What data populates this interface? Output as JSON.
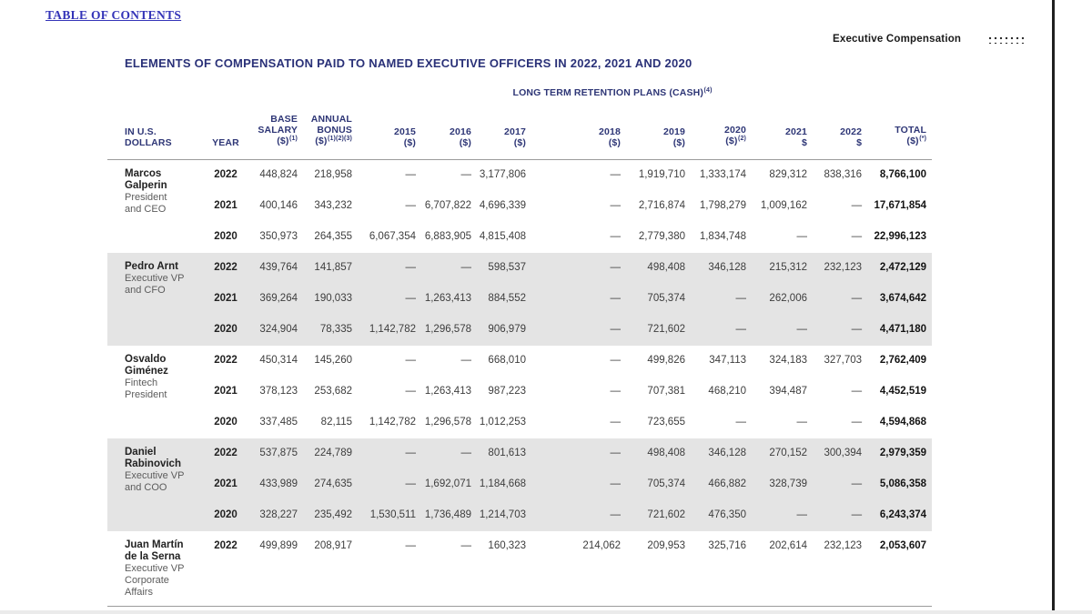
{
  "page": {
    "toc_link": "TABLE OF CONTENTS",
    "section_label": "Executive Compensation",
    "title": "ELEMENTS OF COMPENSATION PAID TO NAMED EXECUTIVE OFFICERS IN 2022, 2021 AND 2020"
  },
  "colors": {
    "accent_navy": "#2e3676",
    "link_blue": "#3434b8",
    "shaded_row": "#e4e4e4"
  },
  "icons": {
    "top_right": "dots-grid-icon"
  },
  "table": {
    "span_header": {
      "t": "LONG TERM RETENTION PLANS (CASH)",
      "s": "(4)"
    },
    "columns": [
      {
        "lines": [
          {
            "t": "IN U.S."
          },
          {
            "t": "DOLLARS"
          }
        ]
      },
      {
        "lines": [
          {
            "t": "YEAR"
          }
        ]
      },
      {
        "lines": [
          {
            "t": "BASE"
          },
          {
            "t": "SALARY"
          },
          {
            "t": "($)",
            "s": "(1)"
          }
        ]
      },
      {
        "lines": [
          {
            "t": "ANNUAL"
          },
          {
            "t": "BONUS"
          },
          {
            "t": "($)",
            "s": "(1)(2)(3)"
          }
        ]
      },
      {
        "lines": [
          {
            "t": "2015"
          },
          {
            "t": "($)"
          }
        ]
      },
      {
        "lines": [
          {
            "t": "2016"
          },
          {
            "t": "($)"
          }
        ]
      },
      {
        "lines": [
          {
            "t": "2017"
          },
          {
            "t": "($)"
          }
        ]
      },
      {
        "lines": [
          {
            "t": "2018"
          },
          {
            "t": "($)"
          }
        ]
      },
      {
        "lines": [
          {
            "t": "2019"
          },
          {
            "t": "($)"
          }
        ]
      },
      {
        "lines": [
          {
            "t": "2020"
          },
          {
            "t": "($)",
            "s": "(2)"
          }
        ]
      },
      {
        "lines": [
          {
            "t": "2021"
          },
          {
            "t": "$"
          }
        ]
      },
      {
        "lines": [
          {
            "t": "2022"
          },
          {
            "t": "$"
          }
        ]
      },
      {
        "lines": [
          {
            "t": "TOTAL"
          },
          {
            "t": "($)",
            "s": "(*)"
          }
        ]
      }
    ],
    "groups": [
      {
        "name": [
          "Marcos",
          "Galperin"
        ],
        "role": [
          "President",
          "and CEO"
        ],
        "shaded": false,
        "rows": [
          {
            "year": "2022",
            "cells": [
              "448,824",
              "218,958",
              "—",
              "—",
              "3,177,806",
              "—",
              "1,919,710",
              "1,333,174",
              "829,312",
              "838,316",
              "8,766,100"
            ]
          },
          {
            "year": "2021",
            "cells": [
              "400,146",
              "343,232",
              "—",
              "6,707,822",
              "4,696,339",
              "—",
              "2,716,874",
              "1,798,279",
              "1,009,162",
              "—",
              "17,671,854"
            ]
          },
          {
            "year": "2020",
            "cells": [
              "350,973",
              "264,355",
              "6,067,354",
              "6,883,905",
              "4,815,408",
              "—",
              "2,779,380",
              "1,834,748",
              "—",
              "—",
              "22,996,123"
            ]
          }
        ]
      },
      {
        "name": [
          "Pedro Arnt"
        ],
        "role": [
          "Executive VP",
          "and CFO"
        ],
        "shaded": true,
        "rows": [
          {
            "year": "2022",
            "cells": [
              "439,764",
              "141,857",
              "—",
              "—",
              "598,537",
              "—",
              "498,408",
              "346,128",
              "215,312",
              "232,123",
              "2,472,129"
            ]
          },
          {
            "year": "2021",
            "cells": [
              "369,264",
              "190,033",
              "—",
              "1,263,413",
              "884,552",
              "—",
              "705,374",
              "—",
              "262,006",
              "—",
              "3,674,642"
            ]
          },
          {
            "year": "2020",
            "cells": [
              "324,904",
              "78,335",
              "1,142,782",
              "1,296,578",
              "906,979",
              "—",
              "721,602",
              "—",
              "—",
              "—",
              "4,471,180"
            ]
          }
        ]
      },
      {
        "name": [
          "Osvaldo",
          "Giménez"
        ],
        "role": [
          "Fintech",
          "President"
        ],
        "shaded": false,
        "rows": [
          {
            "year": "2022",
            "cells": [
              "450,314",
              "145,260",
              "—",
              "—",
              "668,010",
              "—",
              "499,826",
              "347,113",
              "324,183",
              "327,703",
              "2,762,409"
            ]
          },
          {
            "year": "2021",
            "cells": [
              "378,123",
              "253,682",
              "—",
              "1,263,413",
              "987,223",
              "—",
              "707,381",
              "468,210",
              "394,487",
              "—",
              "4,452,519"
            ]
          },
          {
            "year": "2020",
            "cells": [
              "337,485",
              "82,115",
              "1,142,782",
              "1,296,578",
              "1,012,253",
              "—",
              "723,655",
              "—",
              "—",
              "—",
              "4,594,868"
            ]
          }
        ]
      },
      {
        "name": [
          "Daniel",
          "Rabinovich"
        ],
        "role": [
          "Executive VP",
          "and COO"
        ],
        "shaded": true,
        "rows": [
          {
            "year": "2022",
            "cells": [
              "537,875",
              "224,789",
              "—",
              "—",
              "801,613",
              "—",
              "498,408",
              "346,128",
              "270,152",
              "300,394",
              "2,979,359"
            ]
          },
          {
            "year": "2021",
            "cells": [
              "433,989",
              "274,635",
              "—",
              "1,692,071",
              "1,184,668",
              "—",
              "705,374",
              "466,882",
              "328,739",
              "—",
              "5,086,358"
            ]
          },
          {
            "year": "2020",
            "cells": [
              "328,227",
              "235,492",
              "1,530,511",
              "1,736,489",
              "1,214,703",
              "—",
              "721,602",
              "476,350",
              "—",
              "—",
              "6,243,374"
            ]
          }
        ]
      },
      {
        "name": [
          "Juan Martín",
          "de la Serna"
        ],
        "role": [
          "Executive VP",
          "Corporate",
          "Affairs"
        ],
        "shaded": false,
        "rows": [
          {
            "year": "2022",
            "cells": [
              "499,899",
              "208,917",
              "—",
              "—",
              "160,323",
              "214,062",
              "209,953",
              "325,716",
              "202,614",
              "232,123",
              "2,053,607"
            ]
          }
        ]
      }
    ]
  }
}
